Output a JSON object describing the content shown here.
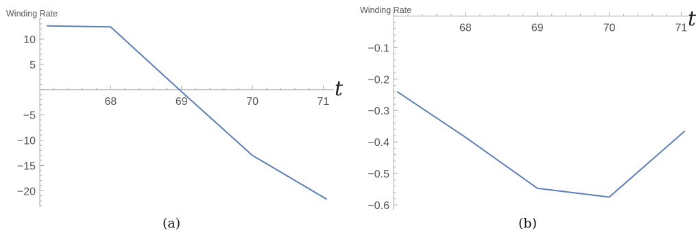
{
  "chart_data": [
    {
      "type": "line",
      "panel": "(a)",
      "ylabel": "Winding Rate",
      "xlabel": "t",
      "x": [
        67.1,
        68,
        69,
        70,
        71.05
      ],
      "series": [
        {
          "values": [
            12.6,
            12.4,
            -0.4,
            -13,
            -21.7
          ]
        }
      ],
      "xlim": [
        67.0,
        71.15
      ],
      "ylim": [
        -23.2,
        14.2
      ],
      "x_ticks": [
        68,
        69,
        70,
        71
      ],
      "x_tick_labels": [
        "68",
        "69",
        "70",
        "71"
      ],
      "y_ticks": [
        10,
        5,
        -5,
        -10,
        -15,
        -20
      ],
      "y_tick_labels": [
        "10",
        "5",
        "−5",
        "−10",
        "−15",
        "−20"
      ],
      "grid": false,
      "color": "#5b7fb5"
    },
    {
      "type": "line",
      "panel": "(b)",
      "ylabel": "Winding Rate",
      "xlabel": "t",
      "x": [
        67.05,
        68,
        69,
        70,
        71.05
      ],
      "series": [
        {
          "values": [
            -0.24,
            -0.385,
            -0.547,
            -0.575,
            -0.365
          ]
        }
      ],
      "xlim": [
        67.0,
        71.1
      ],
      "ylim": [
        -0.615,
        0.003
      ],
      "x_ticks": [
        68,
        69,
        70,
        71
      ],
      "x_tick_labels": [
        "68",
        "69",
        "70",
        "71"
      ],
      "y_ticks": [
        -0.1,
        -0.2,
        -0.3,
        -0.4,
        -0.5,
        -0.6
      ],
      "y_tick_labels": [
        "−0.1",
        "−0.2",
        "−0.3",
        "−0.4",
        "−0.5",
        "−0.6"
      ],
      "grid": false,
      "color": "#5b7fb5"
    }
  ]
}
